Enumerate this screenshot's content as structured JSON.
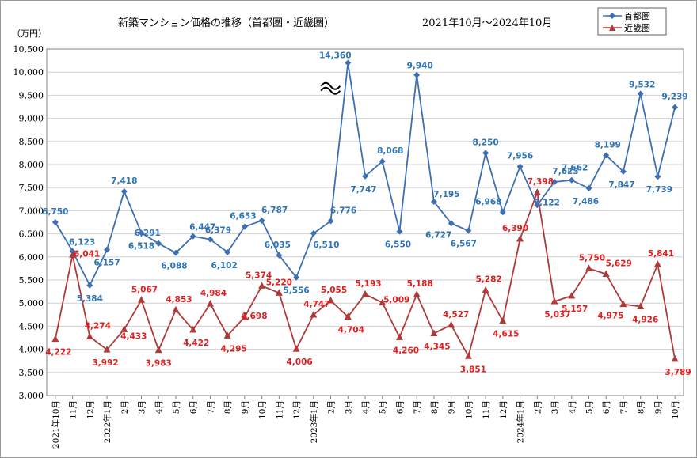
{
  "chart_data": {
    "type": "line",
    "title": "新築マンション価格の推移（首都圏・近畿圏）",
    "period": "2021年10月～2024年10月",
    "ylabel": "（万円）",
    "ylim": [
      3000,
      10500
    ],
    "yticks": [
      "3,000",
      "3,500",
      "4,000",
      "4,500",
      "5,000",
      "5,500",
      "6,000",
      "6,500",
      "7,000",
      "7,500",
      "8,000",
      "8,500",
      "9,000",
      "9,500",
      "10,000",
      "10,500"
    ],
    "categories": [
      "2021年10月",
      "11月",
      "12月",
      "2022年1月",
      "2月",
      "3月",
      "4月",
      "5月",
      "6月",
      "7月",
      "8月",
      "9月",
      "10月",
      "11月",
      "12月",
      "2023年1月",
      "2月",
      "3月",
      "4月",
      "5月",
      "6月",
      "7月",
      "8月",
      "9月",
      "10月",
      "11月",
      "12月",
      "2024年1月",
      "2月",
      "3月",
      "4月",
      "5月",
      "6月",
      "7月",
      "8月",
      "9月",
      "10月"
    ],
    "axis_break_note": "≈",
    "series": [
      {
        "name": "首都圏",
        "color": "#3c6fb4",
        "label_color": "#2e74b5",
        "marker": "diamond",
        "values": [
          6750,
          6123,
          5384,
          6157,
          7418,
          6518,
          6291,
          6088,
          6447,
          6379,
          6102,
          6653,
          6787,
          6035,
          5556,
          6510,
          6776,
          14360,
          7747,
          8068,
          6550,
          9940,
          7195,
          6727,
          6567,
          8250,
          6968,
          7956,
          7122,
          7623,
          7662,
          7486,
          8199,
          7847,
          9532,
          7739,
          9239
        ],
        "labels": [
          "6,750",
          "6,123",
          "5,384",
          "6,157",
          "7,418",
          "6,518",
          "6,291",
          "6,088",
          "6,447",
          "6,379",
          "6,102",
          "6,653",
          "6,787",
          "6,035",
          "5,556",
          "6,510",
          "6,776",
          "14,360",
          "7,747",
          "8,068",
          "6,550",
          "9,940",
          "7,195",
          "6,727",
          "6,567",
          "8,250",
          "6,968",
          "7,956",
          "7,122",
          "7,623",
          "7,662",
          "7,486",
          "8,199",
          "7,847",
          "9,532",
          "7,739",
          "9,239"
        ]
      },
      {
        "name": "近畿圏",
        "color": "#b03a3a",
        "label_color": "#e02020",
        "marker": "triangle",
        "values": [
          4222,
          6041,
          4274,
          3992,
          4433,
          5067,
          3983,
          4853,
          4422,
          4984,
          4295,
          4698,
          5374,
          5220,
          4006,
          4747,
          5055,
          4704,
          5193,
          5009,
          4260,
          5188,
          4345,
          4527,
          3851,
          5282,
          4615,
          6390,
          7398,
          5037,
          5157,
          5750,
          5629,
          4975,
          4926,
          5841,
          3789
        ],
        "labels": [
          "4,222",
          "6,041",
          "4,274",
          "3,992",
          "4,433",
          "5,067",
          "3,983",
          "4,853",
          "4,422",
          "4,984",
          "4,295",
          "4,698",
          "5,374",
          "5,220",
          "4,006",
          "4,747",
          "5,055",
          "4,704",
          "5,193",
          "5,009",
          "4,260",
          "5,188",
          "4,345",
          "4,527",
          "3,851",
          "5,282",
          "4,615",
          "6,390",
          "7,398",
          "5,037",
          "5,157",
          "5,750",
          "5,629",
          "4,975",
          "4,926",
          "5,841",
          "3,789"
        ]
      }
    ],
    "legend_position": "top-right"
  }
}
